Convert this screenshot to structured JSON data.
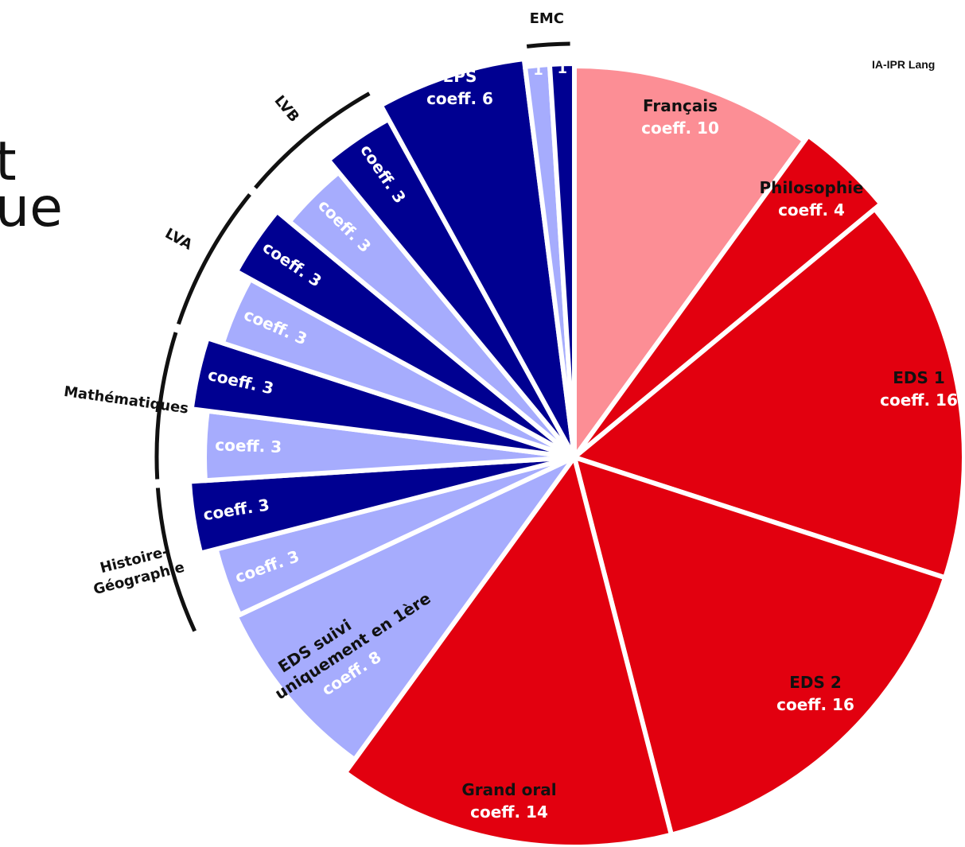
{
  "header": {
    "title_line_1": "t",
    "title_line_2": "ue",
    "corner_label": "IA-IPR Lang"
  },
  "colors": {
    "red": "#e2000f",
    "pink": "#fc8e95",
    "navy": "#000091",
    "lavender": "#a6acfd",
    "outline": "#111111"
  },
  "chart_data": {
    "type": "pie",
    "unit": "coeff.",
    "slices": [
      {
        "name": "Français",
        "label": "coeff. 10",
        "value": 10,
        "color": "pink",
        "text_color": "dark"
      },
      {
        "name": "Philosophie",
        "label": "coeff. 4",
        "value": 4,
        "color": "red",
        "text_color": "dark"
      },
      {
        "name": "EDS 1",
        "label": "coeff. 16",
        "value": 16,
        "color": "red",
        "text_color": "dark"
      },
      {
        "name": "EDS 2",
        "label": "coeff. 16",
        "value": 16,
        "color": "red",
        "text_color": "dark"
      },
      {
        "name": "Grand oral",
        "label": "coeff. 14",
        "value": 14,
        "color": "red",
        "text_color": "dark"
      },
      {
        "name": "EDS suivi uniquement en 1ère",
        "label": "coeff. 8",
        "value": 8,
        "color": "lavender",
        "text_color": "dark"
      },
      {
        "name": "",
        "label": "coeff. 3",
        "value": 3,
        "color": "lavender",
        "text_color": "white",
        "group": "Histoire-Géographie"
      },
      {
        "name": "",
        "label": "coeff. 3",
        "value": 3,
        "color": "navy",
        "text_color": "white",
        "group": "Histoire-Géographie"
      },
      {
        "name": "",
        "label": "coeff. 3",
        "value": 3,
        "color": "lavender",
        "text_color": "white",
        "group": "Mathématiques"
      },
      {
        "name": "",
        "label": "coeff. 3",
        "value": 3,
        "color": "navy",
        "text_color": "white",
        "group": "Mathématiques"
      },
      {
        "name": "",
        "label": "coeff. 3",
        "value": 3,
        "color": "lavender",
        "text_color": "white",
        "group": "LVA"
      },
      {
        "name": "",
        "label": "coeff. 3",
        "value": 3,
        "color": "navy",
        "text_color": "white",
        "group": "LVA"
      },
      {
        "name": "",
        "label": "coeff. 3",
        "value": 3,
        "color": "lavender",
        "text_color": "white",
        "group": "LVB"
      },
      {
        "name": "",
        "label": "coeff. 3",
        "value": 3,
        "color": "navy",
        "text_color": "white",
        "group": "LVB"
      },
      {
        "name": "EPS",
        "label": "coeff. 6",
        "value": 6,
        "color": "navy",
        "text_color": "white"
      },
      {
        "name": "",
        "label": "1",
        "value": 1,
        "color": "lavender",
        "text_color": "white",
        "group": "EMC"
      },
      {
        "name": "",
        "label": "1",
        "value": 1,
        "color": "navy",
        "text_color": "white",
        "group": "EMC"
      }
    ],
    "groups": [
      {
        "name": "Histoire-Géographie",
        "lines": [
          "Histoire-",
          "Géographie"
        ]
      },
      {
        "name": "Mathématiques",
        "lines": [
          "Mathématiques"
        ]
      },
      {
        "name": "LVA",
        "lines": [
          "LVA"
        ]
      },
      {
        "name": "LVB",
        "lines": [
          "LVB"
        ]
      },
      {
        "name": "EMC",
        "lines": [
          "EMC"
        ]
      }
    ]
  }
}
